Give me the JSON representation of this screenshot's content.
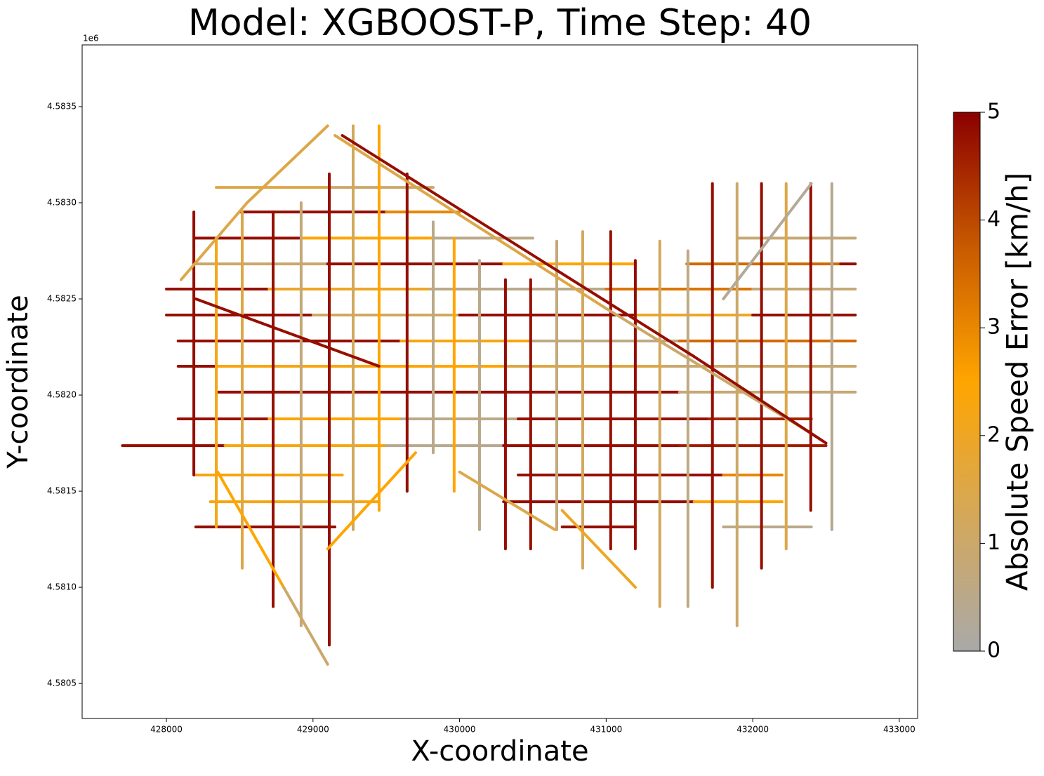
{
  "chart_data": {
    "type": "network",
    "title": "Model: XGBOOST-P, Time Step: 40",
    "xlabel": "X-coordinate",
    "ylabel": "Y-coordinate",
    "y_offset_label": "1e6",
    "xlim": [
      427425,
      433125
    ],
    "ylim": [
      4580318,
      4583821
    ],
    "xticks": [
      428000,
      429000,
      430000,
      431000,
      432000,
      433000
    ],
    "yticks": [
      {
        "value": 4580500,
        "label": "4.5805"
      },
      {
        "value": 4581000,
        "label": "4.5810"
      },
      {
        "value": 4581500,
        "label": "4.5815"
      },
      {
        "value": 4582000,
        "label": "4.5820"
      },
      {
        "value": 4582500,
        "label": "4.5825"
      },
      {
        "value": 4583000,
        "label": "4.5830"
      },
      {
        "value": 4583500,
        "label": "4.5835"
      }
    ],
    "colorbar_label": "Absolute Speed Error [km/h]",
    "clim": [
      0,
      5
    ],
    "cticks": [
      0,
      1,
      2,
      3,
      4,
      5
    ],
    "colormap": [
      "#a9a9a9",
      "#d4a85a",
      "#ffa500",
      "#c85a00",
      "#8b0000"
    ],
    "segments": [
      {
        "x": [
          428340,
          429111
        ],
        "y": [
          4583080,
          4583080
        ],
        "value": 1.5
      },
      {
        "x": [
          429111,
          429820
        ],
        "y": [
          4583080,
          4583080
        ],
        "value": 1
      },
      {
        "x": [
          428500,
          429500
        ],
        "y": [
          4582952,
          4582952
        ],
        "value": 4.8
      },
      {
        "x": [
          429500,
          430000
        ],
        "y": [
          4582952,
          4582952
        ],
        "value": 3
      },
      {
        "x": [
          428190,
          428920
        ],
        "y": [
          4582816,
          4582816
        ],
        "value": 4.8
      },
      {
        "x": [
          428920,
          429820
        ],
        "y": [
          4582816,
          4582816
        ],
        "value": 2.5
      },
      {
        "x": [
          429820,
          430500
        ],
        "y": [
          4582816,
          4582816
        ],
        "value": 0.5
      },
      {
        "x": [
          431900,
          432700
        ],
        "y": [
          4582816,
          4582816
        ],
        "value": 0.8
      },
      {
        "x": [
          428190,
          429100
        ],
        "y": [
          4582682,
          4582682
        ],
        "value": 1
      },
      {
        "x": [
          429100,
          430300
        ],
        "y": [
          4582682,
          4582682
        ],
        "value": 4.8
      },
      {
        "x": [
          430300,
          431200
        ],
        "y": [
          4582682,
          4582682
        ],
        "value": 2.5
      },
      {
        "x": [
          431550,
          432600
        ],
        "y": [
          4582682,
          4582682
        ],
        "value": 3.5
      },
      {
        "x": [
          432600,
          432700
        ],
        "y": [
          4582682,
          4582682
        ],
        "value": 4.8
      },
      {
        "x": [
          428000,
          428700
        ],
        "y": [
          4582551,
          4582551
        ],
        "value": 4.8
      },
      {
        "x": [
          428700,
          429800
        ],
        "y": [
          4582551,
          4582551
        ],
        "value": 2
      },
      {
        "x": [
          429800,
          431000
        ],
        "y": [
          4582551,
          4582551
        ],
        "value": 0.5
      },
      {
        "x": [
          431000,
          432000
        ],
        "y": [
          4582551,
          4582551
        ],
        "value": 3.3
      },
      {
        "x": [
          432000,
          432700
        ],
        "y": [
          4582551,
          4582551
        ],
        "value": 0.8
      },
      {
        "x": [
          428000,
          429000
        ],
        "y": [
          4582416,
          4582416
        ],
        "value": 4.8
      },
      {
        "x": [
          429000,
          430000
        ],
        "y": [
          4582416,
          4582416
        ],
        "value": 1.2
      },
      {
        "x": [
          430000,
          431200
        ],
        "y": [
          4582416,
          4582416
        ],
        "value": 4.8
      },
      {
        "x": [
          431200,
          432000
        ],
        "y": [
          4582416,
          4582416
        ],
        "value": 2
      },
      {
        "x": [
          432000,
          432700
        ],
        "y": [
          4582416,
          4582416
        ],
        "value": 4.8
      },
      {
        "x": [
          428080,
          428600
        ],
        "y": [
          4582281,
          4582281
        ],
        "value": 4.8
      },
      {
        "x": [
          428600,
          429600
        ],
        "y": [
          4582281,
          4582281
        ],
        "value": 4.8
      },
      {
        "x": [
          429600,
          430500
        ],
        "y": [
          4582281,
          4582281
        ],
        "value": 2.3
      },
      {
        "x": [
          430500,
          431500
        ],
        "y": [
          4582281,
          4582281
        ],
        "value": 0.6
      },
      {
        "x": [
          431500,
          432700
        ],
        "y": [
          4582281,
          4582281
        ],
        "value": 3.5
      },
      {
        "x": [
          428080,
          428340
        ],
        "y": [
          4582150,
          4582150
        ],
        "value": 4.8
      },
      {
        "x": [
          428340,
          429400
        ],
        "y": [
          4582150,
          4582150
        ],
        "value": 2.3
      },
      {
        "x": [
          429400,
          430300
        ],
        "y": [
          4582150,
          4582150
        ],
        "value": 2.5
      },
      {
        "x": [
          430300,
          431400
        ],
        "y": [
          4582150,
          4582150
        ],
        "value": 1.5
      },
      {
        "x": [
          431400,
          432700
        ],
        "y": [
          4582150,
          4582150
        ],
        "value": 1
      },
      {
        "x": [
          428340,
          429200
        ],
        "y": [
          4582015,
          4582015
        ],
        "value": 4.8
      },
      {
        "x": [
          429200,
          430300
        ],
        "y": [
          4582015,
          4582015
        ],
        "value": 4.8
      },
      {
        "x": [
          430300,
          431500
        ],
        "y": [
          4582015,
          4582015
        ],
        "value": 4.8
      },
      {
        "x": [
          431500,
          432700
        ],
        "y": [
          4582015,
          4582015
        ],
        "value": 0.8
      },
      {
        "x": [
          428080,
          428700
        ],
        "y": [
          4581876,
          4581876
        ],
        "value": 4.8
      },
      {
        "x": [
          428700,
          429600
        ],
        "y": [
          4581876,
          4581876
        ],
        "value": 2.5
      },
      {
        "x": [
          429600,
          430400
        ],
        "y": [
          4581876,
          4581876
        ],
        "value": 0.5
      },
      {
        "x": [
          430400,
          431700
        ],
        "y": [
          4581876,
          4581876
        ],
        "value": 4.8
      },
      {
        "x": [
          431700,
          432400
        ],
        "y": [
          4581876,
          4581876
        ],
        "value": 4.5
      },
      {
        "x": [
          427700,
          428400
        ],
        "y": [
          4581737,
          4581737
        ],
        "value": 4.8
      },
      {
        "x": [
          428400,
          429500
        ],
        "y": [
          4581737,
          4581737
        ],
        "value": 2.3
      },
      {
        "x": [
          429500,
          430300
        ],
        "y": [
          4581737,
          4581737
        ],
        "value": 0.4
      },
      {
        "x": [
          430300,
          431500
        ],
        "y": [
          4581737,
          4581737
        ],
        "value": 4.8
      },
      {
        "x": [
          431500,
          432500
        ],
        "y": [
          4581737,
          4581737
        ],
        "value": 4.6
      },
      {
        "x": [
          428190,
          429200
        ],
        "y": [
          4581584,
          4581584
        ],
        "value": 2.3
      },
      {
        "x": [
          430400,
          431800
        ],
        "y": [
          4581584,
          4581584
        ],
        "value": 4.8
      },
      {
        "x": [
          431800,
          432200
        ],
        "y": [
          4581584,
          4581584
        ],
        "value": 3
      },
      {
        "x": [
          428300,
          429450
        ],
        "y": [
          4581445,
          4581445
        ],
        "value": 2.2
      },
      {
        "x": [
          430300,
          431600
        ],
        "y": [
          4581445,
          4581445
        ],
        "value": 4.8
      },
      {
        "x": [
          431600,
          432200
        ],
        "y": [
          4581445,
          4581445
        ],
        "value": 2.5
      },
      {
        "x": [
          428200,
          429150
        ],
        "y": [
          4581314,
          4581314
        ],
        "value": 4.8
      },
      {
        "x": [
          430700,
          431200
        ],
        "y": [
          4581314,
          4581314
        ],
        "value": 4.8
      },
      {
        "x": [
          431800,
          432400
        ],
        "y": [
          4581314,
          4581314
        ],
        "value": 0.5
      },
      {
        "x": [
          428187,
          428187
        ],
        "y": [
          4581584,
          4582952
        ],
        "value": 4.8
      },
      {
        "x": [
          428340,
          428340
        ],
        "y": [
          4581314,
          4582816
        ],
        "value": 2.2
      },
      {
        "x": [
          428517,
          428517
        ],
        "y": [
          4581100,
          4582952
        ],
        "value": 1.5
      },
      {
        "x": [
          428728,
          428728
        ],
        "y": [
          4580900,
          4582952
        ],
        "value": 4.8
      },
      {
        "x": [
          428919,
          428919
        ],
        "y": [
          4580800,
          4583000
        ],
        "value": 0.8
      },
      {
        "x": [
          429111,
          429111
        ],
        "y": [
          4580700,
          4583150
        ],
        "value": 4.8
      },
      {
        "x": [
          429274,
          429274
        ],
        "y": [
          4581300,
          4583400
        ],
        "value": 1.2
      },
      {
        "x": [
          429451,
          429451
        ],
        "y": [
          4581400,
          4583400
        ],
        "value": 2.5
      },
      {
        "x": [
          429642,
          429642
        ],
        "y": [
          4581500,
          4583150
        ],
        "value": 4.8
      },
      {
        "x": [
          429820,
          429820
        ],
        "y": [
          4581700,
          4582900
        ],
        "value": 0.5
      },
      {
        "x": [
          429963,
          429963
        ],
        "y": [
          4581500,
          4582816
        ],
        "value": 2.5
      },
      {
        "x": [
          430136,
          430136
        ],
        "y": [
          4581300,
          4582700
        ],
        "value": 0.5
      },
      {
        "x": [
          430313,
          430313
        ],
        "y": [
          4581200,
          4582600
        ],
        "value": 4.8
      },
      {
        "x": [
          430485,
          430485
        ],
        "y": [
          4581200,
          4582600
        ],
        "value": 4.8
      },
      {
        "x": [
          430663,
          430663
        ],
        "y": [
          4581300,
          4582800
        ],
        "value": 0.8
      },
      {
        "x": [
          430840,
          430840
        ],
        "y": [
          4581100,
          4582850
        ],
        "value": 1.2
      },
      {
        "x": [
          431031,
          431031
        ],
        "y": [
          4581200,
          4582850
        ],
        "value": 4.8
      },
      {
        "x": [
          431199,
          431199
        ],
        "y": [
          4581200,
          4582700
        ],
        "value": 4.8
      },
      {
        "x": [
          431366,
          431366
        ],
        "y": [
          4580900,
          4582800
        ],
        "value": 1.2
      },
      {
        "x": [
          431558,
          431558
        ],
        "y": [
          4580900,
          4582750
        ],
        "value": 0.6
      },
      {
        "x": [
          431725,
          431725
        ],
        "y": [
          4581000,
          4583100
        ],
        "value": 4.8
      },
      {
        "x": [
          431893,
          431893
        ],
        "y": [
          4580800,
          4583100
        ],
        "value": 1
      },
      {
        "x": [
          432060,
          432060
        ],
        "y": [
          4581100,
          4583100
        ],
        "value": 4.8
      },
      {
        "x": [
          432228,
          432228
        ],
        "y": [
          4581200,
          4583100
        ],
        "value": 1.5
      },
      {
        "x": [
          432396,
          432396
        ],
        "y": [
          4581400,
          4583100
        ],
        "value": 4.8
      },
      {
        "x": [
          432540,
          432540
        ],
        "y": [
          4581300,
          4583100
        ],
        "value": 0.4
      },
      {
        "x": [
          429150,
          431000
        ],
        "y": [
          4583350,
          4582450
        ],
        "value": 1.5
      },
      {
        "x": [
          429200,
          431600
        ],
        "y": [
          4583350,
          4582200
        ],
        "value": 4.8
      },
      {
        "x": [
          431000,
          432400
        ],
        "y": [
          4582450,
          4581800
        ],
        "value": 1
      },
      {
        "x": [
          431600,
          432500
        ],
        "y": [
          4582200,
          4581750
        ],
        "value": 4.8
      },
      {
        "x": [
          431800,
          432400
        ],
        "y": [
          4582500,
          4583100
        ],
        "value": 0.3
      },
      {
        "x": [
          428100,
          428550
        ],
        "y": [
          4582600,
          4583000
        ],
        "value": 1.5
      },
      {
        "x": [
          428550,
          429100
        ],
        "y": [
          4583000,
          4583400
        ],
        "value": 1.5
      },
      {
        "x": [
          428200,
          429450
        ],
        "y": [
          4582500,
          4582150
        ],
        "value": 4.8
      },
      {
        "x": [
          428350,
          428800
        ],
        "y": [
          4581600,
          4581000
        ],
        "value": 2.5
      },
      {
        "x": [
          428800,
          429100
        ],
        "y": [
          4581000,
          4580600
        ],
        "value": 1
      },
      {
        "x": [
          429100,
          429700
        ],
        "y": [
          4581200,
          4581700
        ],
        "value": 2.5
      },
      {
        "x": [
          430000,
          430650
        ],
        "y": [
          4581600,
          4581300
        ],
        "value": 1.5
      },
      {
        "x": [
          430700,
          431200
        ],
        "y": [
          4581400,
          4581000
        ],
        "value": 2
      }
    ]
  }
}
